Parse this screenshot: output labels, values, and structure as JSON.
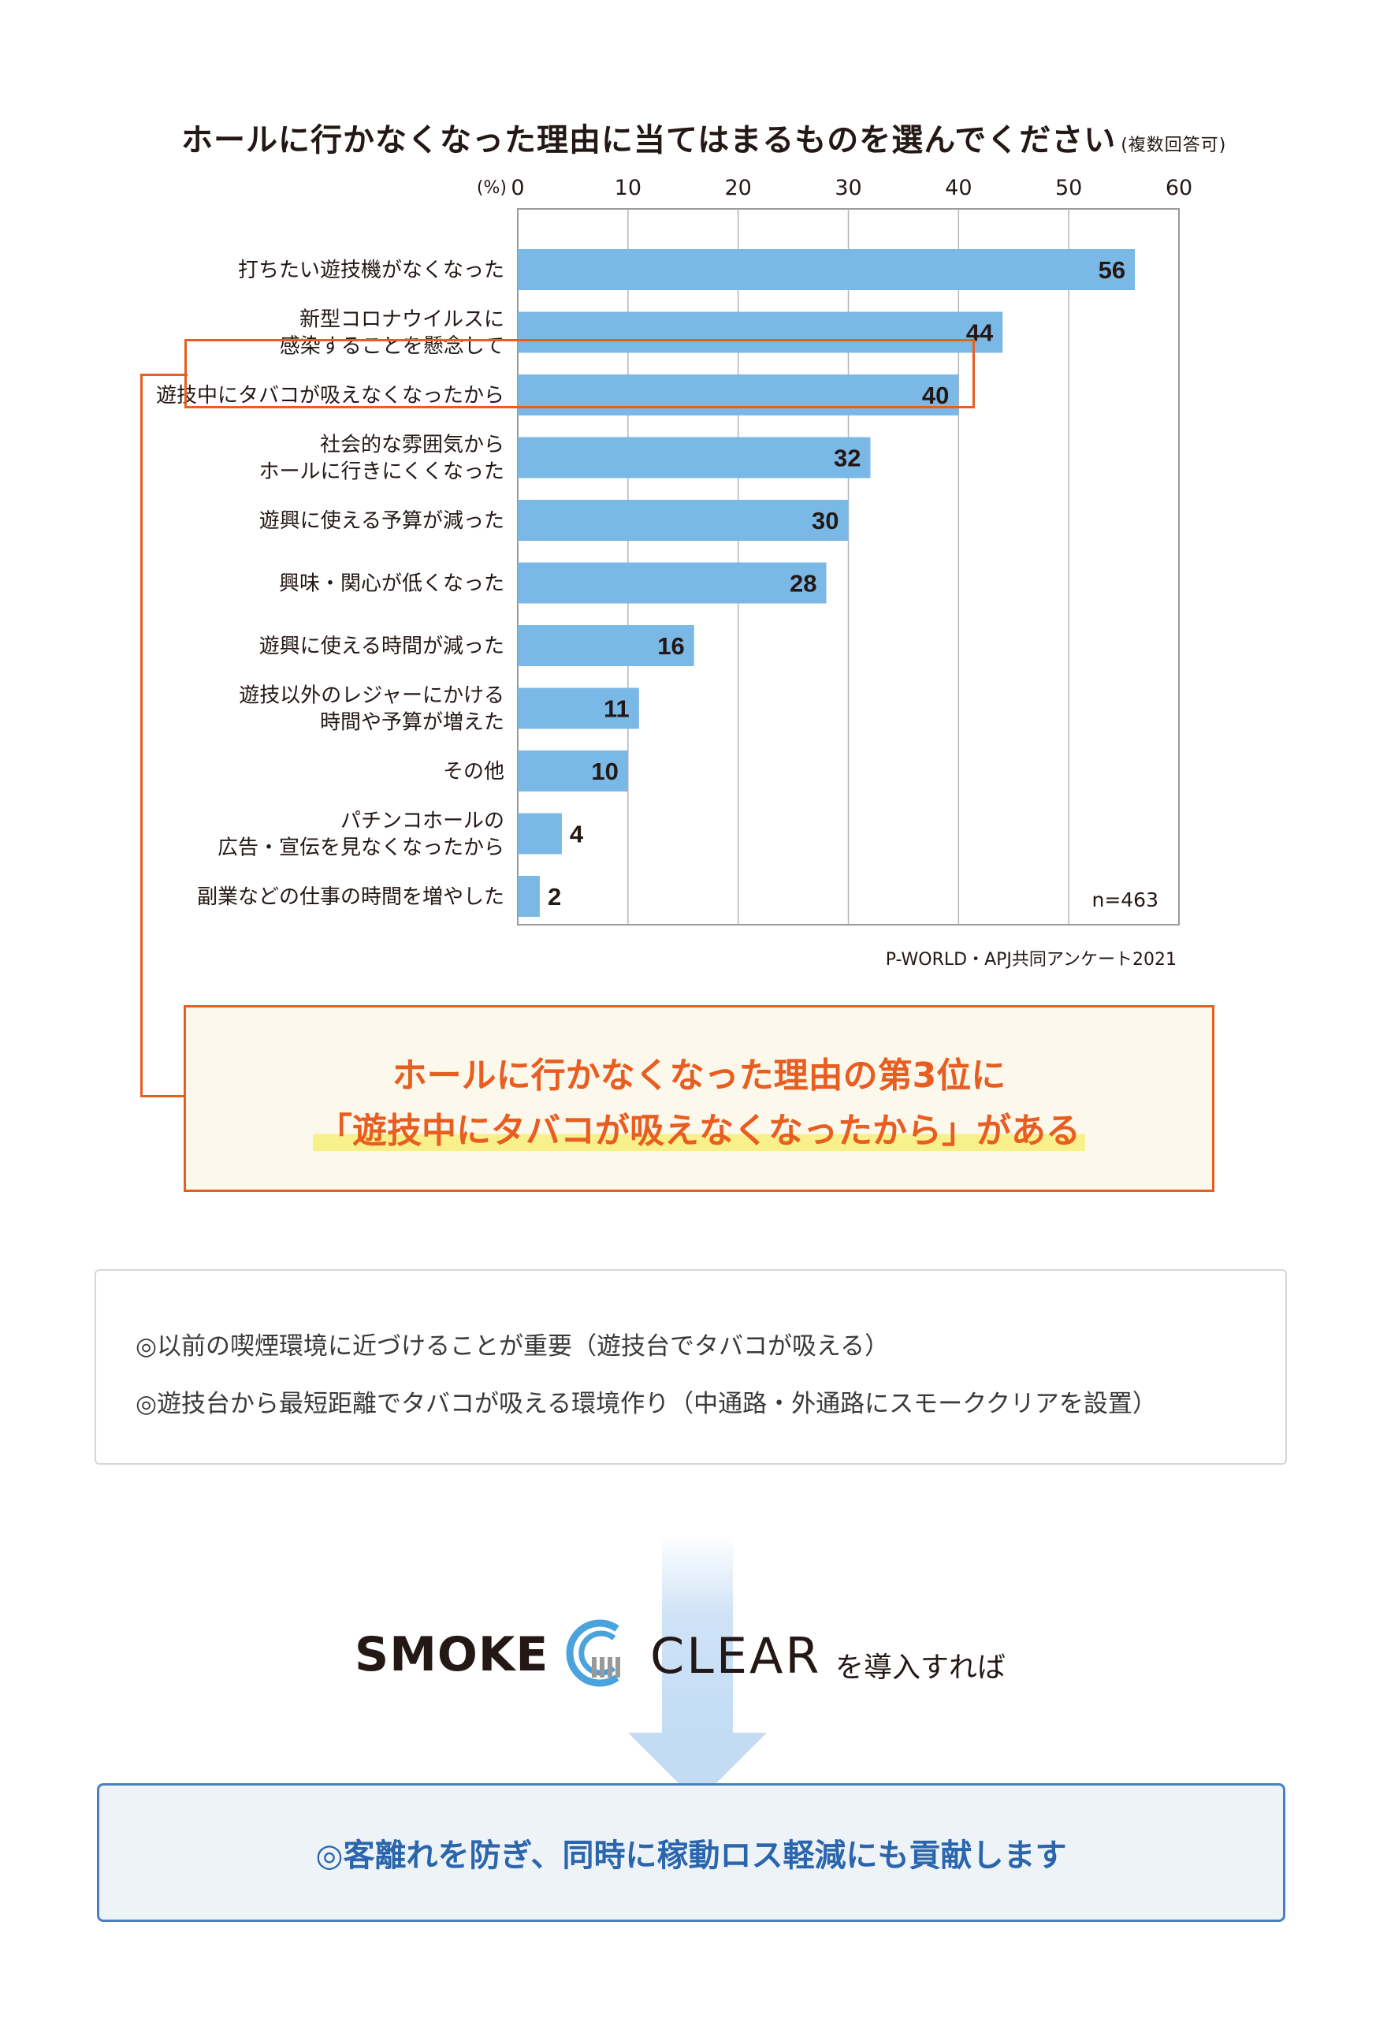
{
  "chart_data": {
    "type": "bar",
    "orientation": "horizontal",
    "title": "ホールに行かなくなった理由に当てはまるものを選んでください",
    "title_note": "(複数回答可)",
    "unit_label": "(%)",
    "xlim": [
      0,
      60
    ],
    "x_ticks": [
      "0",
      "10",
      "20",
      "30",
      "40",
      "50",
      "60"
    ],
    "grid": true,
    "categories": [
      [
        "打ちたい遊技機がなくなった"
      ],
      [
        "新型コロナウイルスに",
        "感染することを懸念して"
      ],
      [
        "遊技中にタバコが吸えなくなったから"
      ],
      [
        "社会的な雰囲気から",
        "ホールに行きにくくなった"
      ],
      [
        "遊興に使える予算が減った"
      ],
      [
        "興味・関心が低くなった"
      ],
      [
        "遊興に使える時間が減った"
      ],
      [
        "遊技以外のレジャーにかける",
        "時間や予算が増えた"
      ],
      [
        "その他"
      ],
      [
        "パチンコホールの",
        "広告・宣伝を見なくなったから"
      ],
      [
        "副業などの仕事の時間を増やした"
      ]
    ],
    "values": [
      56,
      44,
      40,
      32,
      30,
      28,
      16,
      11,
      10,
      4,
      2
    ],
    "highlight_index": 2,
    "sample_size": "n=463",
    "source": "P-WORLD・APJ共同アンケート2021",
    "bar_color": "#7ab8e6",
    "highlight_color": "#e85d20"
  },
  "callout": {
    "line1": "ホールに行かなくなった理由の第3位に",
    "line2": "「遊技中にタバコが吸えなくなったから」がある"
  },
  "points": [
    "◎以前の喫煙環境に近づけることが重要（遊技台でタバコが吸える）",
    "◎遊技台から最短距離でタバコが吸える環境作り（中通路・外通路にスモーククリアを設置）"
  ],
  "logo": {
    "smoke": "SMOKE",
    "clear": "CLEAR",
    "suffix": "を導入すれば",
    "icon": "smoke-clear-logo-icon"
  },
  "result": "◎客離れを防ぎ、同時に稼動ロス軽減にも貢献します"
}
